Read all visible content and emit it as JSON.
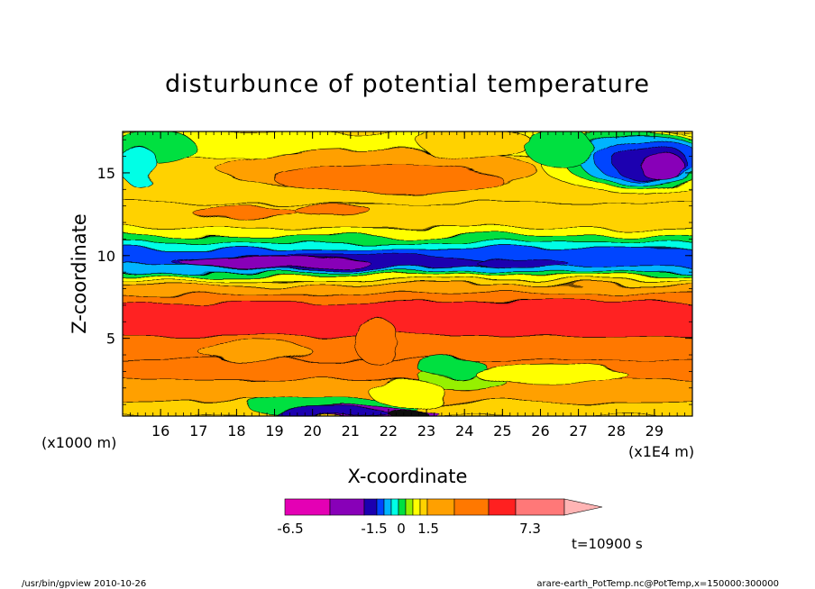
{
  "chart_data": {
    "type": "heatmap",
    "title": "disturbunce of potential temperature",
    "xlabel": "X-coordinate",
    "ylabel": "Z-coordinate",
    "x_unit_left": "(x1000 m)",
    "x_unit_right": "(x1E4 m)",
    "xlim": [
      15.0,
      30.0
    ],
    "ylim": [
      0.3,
      17.5
    ],
    "x_ticks": [
      "16",
      "17",
      "18",
      "19",
      "20",
      "21",
      "22",
      "23",
      "24",
      "25",
      "26",
      "27",
      "28",
      "29"
    ],
    "x_tick_values": [
      16,
      17,
      18,
      19,
      20,
      21,
      22,
      23,
      24,
      25,
      26,
      27,
      28,
      29
    ],
    "y_ticks": [
      "5",
      "10",
      "15"
    ],
    "y_tick_values": [
      5,
      10,
      15
    ],
    "time_label": "t=10900 s",
    "colorbar": {
      "labels": [
        "-6.5",
        "-1.5",
        "0",
        "1.5",
        "7.3"
      ],
      "colors": [
        "#e400b4",
        "#8800b8",
        "#1c00b0",
        "#0044ff",
        "#00b4ff",
        "#00ffe6",
        "#00e040",
        "#96f000",
        "#ffff00",
        "#ffd200",
        "#ffa000",
        "#ff7800",
        "#ff2020",
        "#ff7878",
        "#ffb4b4"
      ]
    },
    "bands": [
      {
        "z": [
          0.3,
          1.2
        ],
        "color": "#ffd200"
      },
      {
        "z": [
          1.2,
          2.5
        ],
        "color": "#ffa000"
      },
      {
        "z": [
          2.5,
          3.7
        ],
        "color": "#ff7800"
      },
      {
        "z": [
          3.7,
          5.2
        ],
        "color": "#ff7800"
      },
      {
        "z": [
          5.2,
          7.2
        ],
        "color": "#ff2020"
      },
      {
        "z": [
          7.2,
          7.7
        ],
        "color": "#ff7800"
      },
      {
        "z": [
          7.7,
          8.2
        ],
        "color": "#ffa000"
      },
      {
        "z": [
          8.2,
          8.5
        ],
        "color": "#ffd200"
      },
      {
        "z": [
          8.5,
          8.8
        ],
        "color": "#ffff00"
      },
      {
        "z": [
          8.8,
          9.0
        ],
        "color": "#00e040"
      },
      {
        "z": [
          9.0,
          9.4
        ],
        "color": "#00b4ff"
      },
      {
        "z": [
          9.4,
          10.4
        ],
        "color": "#0044ff"
      },
      {
        "z": [
          10.4,
          10.8
        ],
        "color": "#00ffe6"
      },
      {
        "z": [
          10.8,
          11.2
        ],
        "color": "#00e040"
      },
      {
        "z": [
          11.2,
          11.7
        ],
        "color": "#ffff00"
      },
      {
        "z": [
          11.7,
          13.2
        ],
        "color": "#ffd200"
      },
      {
        "z": [
          13.2,
          16.0
        ],
        "color": "#ffd200"
      },
      {
        "z": [
          16.0,
          17.5
        ],
        "color": "#ffff00"
      }
    ],
    "blobs": [
      {
        "x": 21.7,
        "z": 15.2,
        "rx": 4.2,
        "rz": 1.2,
        "color": "#ffa000"
      },
      {
        "x": 22.0,
        "z": 14.6,
        "rx": 3.0,
        "rz": 0.8,
        "color": "#ff7800"
      },
      {
        "x": 28.4,
        "z": 15.7,
        "rx": 2.4,
        "rz": 2.0,
        "color": "#ffff00"
      },
      {
        "x": 28.6,
        "z": 15.8,
        "rx": 2.0,
        "rz": 1.7,
        "color": "#00e040"
      },
      {
        "x": 28.7,
        "z": 15.8,
        "rx": 1.7,
        "rz": 1.5,
        "color": "#00b4ff"
      },
      {
        "x": 28.8,
        "z": 15.8,
        "rx": 1.4,
        "rz": 1.25,
        "color": "#0044ff"
      },
      {
        "x": 28.9,
        "z": 15.6,
        "rx": 1.0,
        "rz": 1.0,
        "color": "#1c00b0"
      },
      {
        "x": 29.2,
        "z": 15.4,
        "rx": 0.6,
        "rz": 0.8,
        "color": "#8800b8"
      },
      {
        "x": 15.8,
        "z": 16.6,
        "rx": 1.1,
        "rz": 1.0,
        "color": "#00e040"
      },
      {
        "x": 15.4,
        "z": 15.5,
        "rx": 0.5,
        "rz": 1.2,
        "color": "#00ffe6"
      },
      {
        "x": 24.3,
        "z": 16.8,
        "rx": 1.5,
        "rz": 0.9,
        "color": "#ffd200"
      },
      {
        "x": 26.5,
        "z": 16.5,
        "rx": 0.9,
        "rz": 1.1,
        "color": "#00e040"
      },
      {
        "x": 20.5,
        "z": 9.6,
        "rx": 4.2,
        "rz": 0.45,
        "color": "#1c00b0"
      },
      {
        "x": 19.0,
        "z": 9.6,
        "rx": 2.5,
        "rz": 0.35,
        "color": "#8800b8"
      },
      {
        "x": 25.5,
        "z": 9.6,
        "rx": 1.2,
        "rz": 0.3,
        "color": "#1c00b0"
      },
      {
        "x": 18.2,
        "z": 12.7,
        "rx": 1.4,
        "rz": 0.35,
        "color": "#ff7800"
      },
      {
        "x": 20.5,
        "z": 12.8,
        "rx": 1.0,
        "rz": 0.35,
        "color": "#ff7800"
      },
      {
        "x": 24.0,
        "z": 2.5,
        "rx": 1.2,
        "rz": 0.7,
        "color": "#96f000"
      },
      {
        "x": 23.7,
        "z": 3.2,
        "rx": 0.9,
        "rz": 0.6,
        "color": "#00e040"
      },
      {
        "x": 26.3,
        "z": 2.8,
        "rx": 2.0,
        "rz": 0.6,
        "color": "#ffff00"
      },
      {
        "x": 20.5,
        "z": 0.9,
        "rx": 2.2,
        "rz": 0.5,
        "color": "#00e040"
      },
      {
        "x": 21.5,
        "z": 0.5,
        "rx": 1.8,
        "rz": 0.35,
        "color": "#8800b8"
      },
      {
        "x": 20.5,
        "z": 0.5,
        "rx": 1.5,
        "rz": 0.25,
        "color": "#1c00b0"
      },
      {
        "x": 22.5,
        "z": 0.5,
        "rx": 0.5,
        "rz": 0.25,
        "color": "#111111"
      },
      {
        "x": 21.7,
        "z": 4.8,
        "rx": 0.6,
        "rz": 1.4,
        "color": "#ff7800"
      },
      {
        "x": 18.5,
        "z": 4.2,
        "rx": 1.5,
        "rz": 0.6,
        "color": "#ffa000"
      },
      {
        "x": 22.5,
        "z": 1.7,
        "rx": 1.0,
        "rz": 0.8,
        "color": "#ffff00"
      }
    ]
  },
  "footer": {
    "left": "/usr/bin/gpview   2010-10-26",
    "right": "arare-earth_PotTemp.nc@PotTemp,x=150000:300000"
  }
}
